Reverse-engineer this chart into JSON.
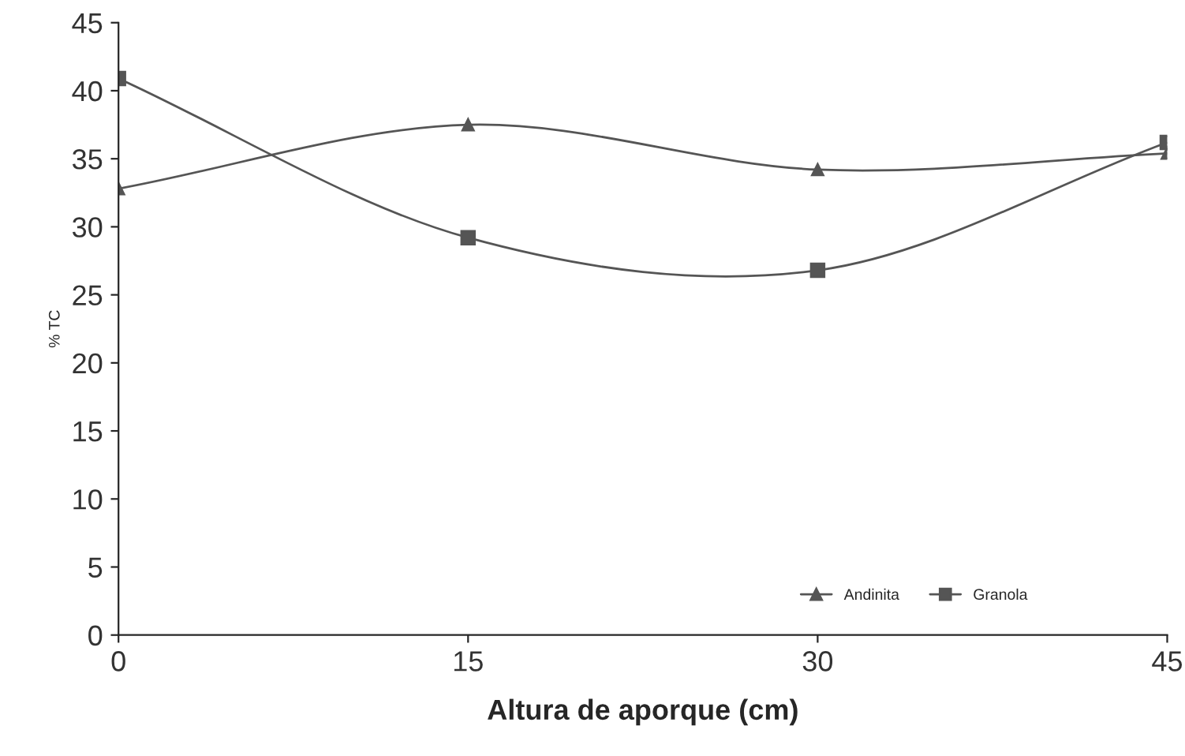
{
  "chart_data": {
    "type": "line",
    "xlabel": "Altura de aporque (cm)",
    "ylabel": "% TC",
    "x": [
      0,
      15,
      30,
      45
    ],
    "series": [
      {
        "name": "Andinita",
        "color": "#555555",
        "values": [
          32.8,
          37.5,
          34.2,
          35.4
        ],
        "marker": "triangle"
      },
      {
        "name": "Granola",
        "color": "#555555",
        "values": [
          40.9,
          29.2,
          26.8,
          36.2
        ],
        "marker": "square"
      }
    ],
    "xlim": [
      0,
      45
    ],
    "xticks": [
      0,
      15,
      30,
      45
    ],
    "ylim": [
      0,
      45
    ],
    "yticks": [
      0,
      5,
      10,
      15,
      20,
      25,
      30,
      35,
      40,
      45
    ],
    "grid": false,
    "legend": "bottom right",
    "line_style": "solid"
  }
}
